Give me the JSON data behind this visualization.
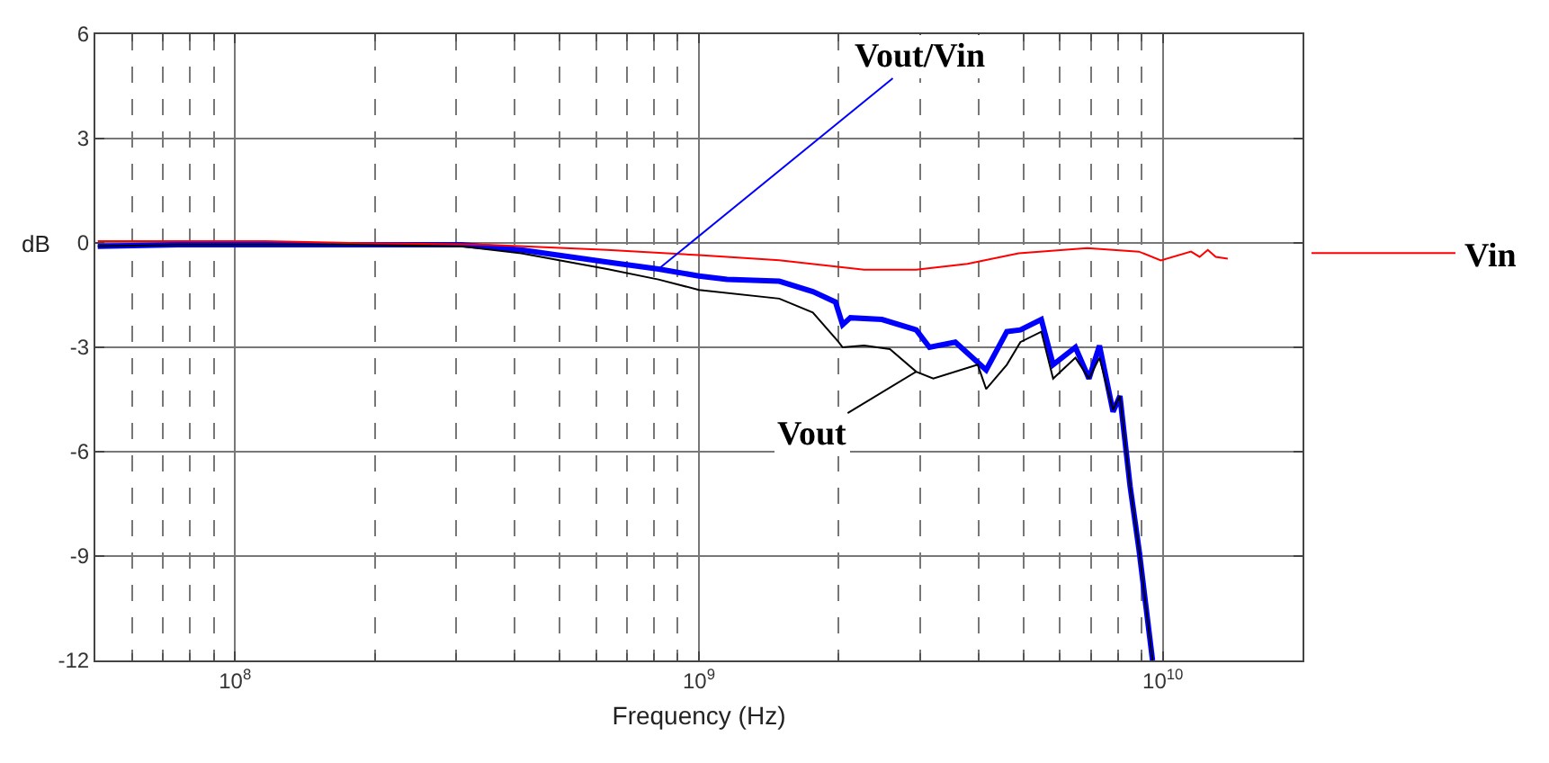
{
  "chart_data": {
    "type": "line",
    "xlabel": "Frequency (Hz)",
    "ylabel": "dB",
    "log": "x",
    "grid": true,
    "legend": "right",
    "xlim": [
      50000000.0,
      20000000000.0
    ],
    "xticks": [
      {
        "value": 100000000.0,
        "label": "10$^{8}$"
      },
      {
        "value": 1000000000.0,
        "label": "10$^{9}$"
      },
      {
        "value": 10000000000.0,
        "label": "10$^{10}$"
      }
    ],
    "ylim": [
      -12,
      6
    ],
    "yticks": [
      -12,
      -9,
      -6,
      -3,
      0,
      3,
      6
    ],
    "series": [
      {
        "name": "Vout/Vin",
        "color": "#0000ff",
        "x": [
          50600000.0,
          75500000.0,
          116000000.0,
          177000000.0,
          308000000.0,
          414000000.0,
          634000000.0,
          818000000.0,
          1000000000.0,
          1150000000.0,
          1490000000.0,
          1760000000.0,
          1970000000.0,
          2040000000.0,
          2120000000.0,
          2480000000.0,
          2940000000.0,
          3140000000.0,
          3570000000.0,
          4160000000.0,
          4610000000.0,
          4930000000.0,
          5470000000.0,
          5800000000.0,
          6480000000.0,
          6930000000.0,
          7300000000.0,
          7810000000.0,
          8080000000.0,
          8500000000.0,
          8880000000.0,
          9500000000.0
        ],
        "values": [
          -0.1,
          -0.05,
          -0.05,
          -0.05,
          -0.05,
          -0.2,
          -0.55,
          -0.75,
          -0.95,
          -1.05,
          -1.1,
          -1.4,
          -1.7,
          -2.35,
          -2.15,
          -2.2,
          -2.5,
          -3.0,
          -2.85,
          -3.65,
          -2.55,
          -2.5,
          -2.2,
          -3.5,
          -3.0,
          -3.9,
          -2.95,
          -4.85,
          -4.4,
          -7.0,
          -8.8,
          -12
        ]
      },
      {
        "name": "Vout",
        "color": "#000000",
        "x": [
          50600000.0,
          75500000.0,
          116000000.0,
          177000000.0,
          308000000.0,
          414000000.0,
          634000000.0,
          818000000.0,
          1000000000.0,
          1490000000.0,
          1760000000.0,
          2000000000.0,
          2040000000.0,
          2270000000.0,
          2580000000.0,
          2940000000.0,
          3200000000.0,
          3990000000.0,
          4160000000.0,
          4610000000.0,
          4930000000.0,
          5470000000.0,
          5800000000.0,
          6480000000.0,
          6930000000.0,
          7300000000.0,
          7810000000.0,
          8080000000.0,
          8500000000.0,
          8880000000.0,
          9500000000.0
        ],
        "values": [
          -0.1,
          -0.05,
          -0.05,
          -0.05,
          -0.1,
          -0.3,
          -0.75,
          -1.05,
          -1.35,
          -1.6,
          -2.0,
          -2.85,
          -3.0,
          -2.95,
          -3.05,
          -3.7,
          -3.9,
          -3.5,
          -4.2,
          -3.5,
          -2.85,
          -2.55,
          -3.9,
          -3.3,
          -3.9,
          -3.3,
          -4.8,
          -4.4,
          -7.0,
          -8.8,
          -12
        ]
      },
      {
        "name": "Vin",
        "color": "#ff0000",
        "x": [
          50600000.0,
          116000000.0,
          177000000.0,
          349000000.0,
          634000000.0,
          1000000000.0,
          1490000000.0,
          2270000000.0,
          2940000000.0,
          3790000000.0,
          4890000000.0,
          6870000000.0,
          8880000000.0,
          9900000000.0,
          11500000000.0,
          12000000000.0,
          12500000000.0,
          13000000000.0,
          13800000000.0
        ],
        "values": [
          0.05,
          0.05,
          0.0,
          -0.05,
          -0.2,
          -0.35,
          -0.5,
          -0.77,
          -0.77,
          -0.6,
          -0.3,
          -0.15,
          -0.25,
          -0.5,
          -0.25,
          -0.4,
          -0.2,
          -0.4,
          -0.45
        ]
      }
    ]
  }
}
